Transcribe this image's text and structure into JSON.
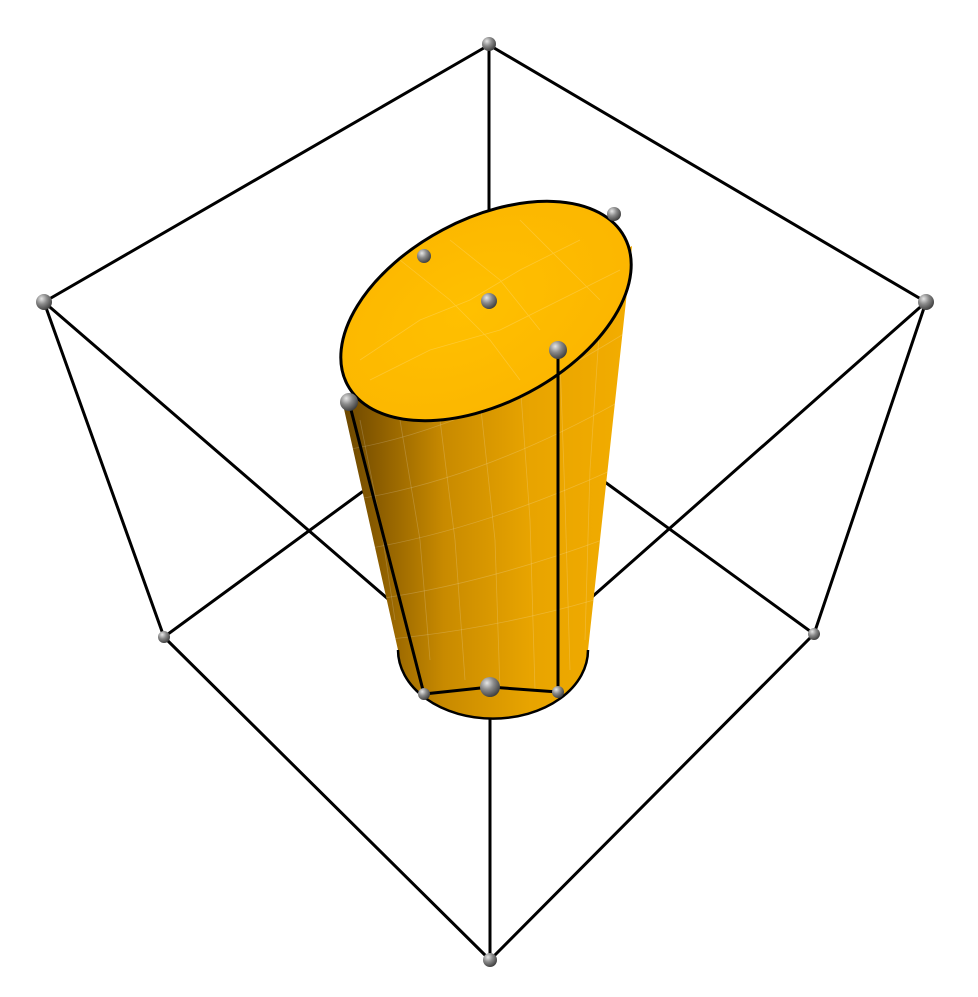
{
  "scene": {
    "kind": "3d-render",
    "subject": "truncated-cone-in-wireframe-cube",
    "colors": {
      "background": "#ffffff",
      "cube_edge": "#000000",
      "surface_top": "#fcb700",
      "surface_side_light": "#f0a800",
      "surface_side_dark": "#5a3c00",
      "vertex_marker": "#6e6e6e",
      "vertex_marker_highlight": "#d8d8d8"
    }
  }
}
